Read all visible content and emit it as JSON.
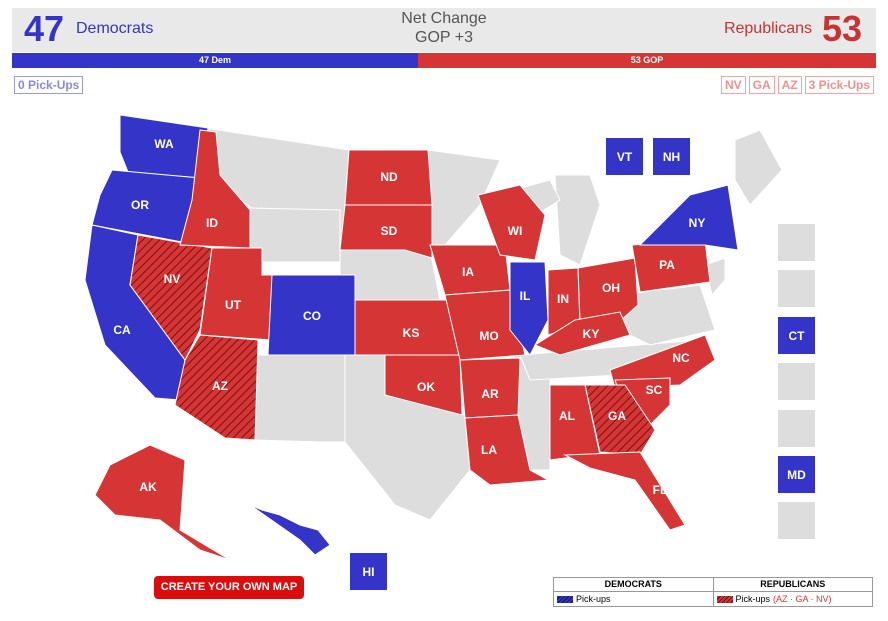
{
  "header": {
    "dem_count": "47",
    "dem_label": "Democrats",
    "gop_count": "53",
    "gop_label": "Republicans",
    "net_title": "Net Change",
    "net_value": "GOP +3"
  },
  "bar": {
    "dem_label": "47 Dem",
    "gop_label": "53 GOP",
    "dem_share": 0.47
  },
  "pickups": {
    "dem_label": "0 Pick-Ups",
    "gop_states": [
      "NV",
      "GA",
      "AZ"
    ],
    "gop_label": "3 Pick-Ups"
  },
  "colors": {
    "dem": "#3434c8",
    "gop": "#d53535",
    "none": "#dddddd",
    "cta": "#dd0c0c"
  },
  "map": {
    "states": {
      "WA": {
        "party": "dem"
      },
      "OR": {
        "party": "dem"
      },
      "CA": {
        "party": "dem"
      },
      "NV": {
        "party": "gop",
        "pickup": true
      },
      "ID": {
        "party": "gop"
      },
      "UT": {
        "party": "gop"
      },
      "AZ": {
        "party": "gop",
        "pickup": true
      },
      "CO": {
        "party": "dem"
      },
      "ND": {
        "party": "gop"
      },
      "SD": {
        "party": "gop"
      },
      "KS": {
        "party": "gop"
      },
      "OK": {
        "party": "gop"
      },
      "IA": {
        "party": "gop"
      },
      "MO": {
        "party": "gop"
      },
      "AR": {
        "party": "gop"
      },
      "LA": {
        "party": "gop"
      },
      "WI": {
        "party": "gop"
      },
      "IL": {
        "party": "dem"
      },
      "IN": {
        "party": "gop"
      },
      "OH": {
        "party": "gop"
      },
      "KY": {
        "party": "gop"
      },
      "PA": {
        "party": "gop"
      },
      "NY": {
        "party": "dem"
      },
      "NC": {
        "party": "gop"
      },
      "SC": {
        "party": "gop"
      },
      "GA": {
        "party": "gop",
        "pickup": true
      },
      "AL": {
        "party": "gop"
      },
      "FL": {
        "party": "gop"
      },
      "AK": {
        "party": "gop"
      },
      "HI": {
        "party": "dem"
      },
      "VT": {
        "party": "dem"
      },
      "NH": {
        "party": "dem"
      },
      "CT": {
        "party": "dem"
      },
      "MD": {
        "party": "dem"
      }
    }
  },
  "legend": {
    "dem_header": "DEMOCRATS",
    "gop_header": "REPUBLICANS",
    "dem_row": "Pick-ups",
    "gop_row": "Pick-ups",
    "gop_states": "(AZ · GA · NV)"
  },
  "cta_label": "CREATE YOUR OWN MAP"
}
